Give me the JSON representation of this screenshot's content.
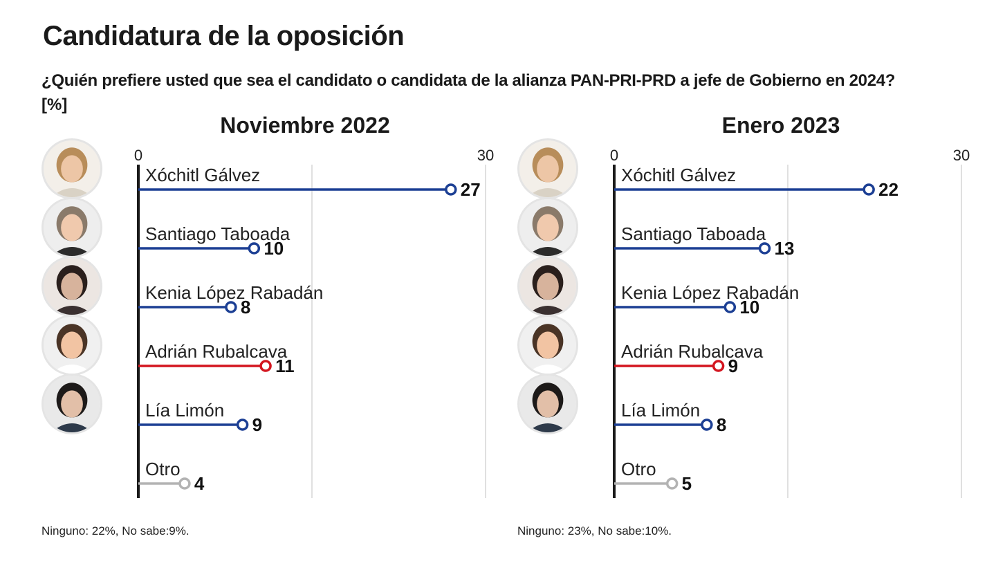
{
  "title": "Candidatura de la oposición",
  "subtitle": "¿Quién prefiere usted que sea el candidato o candidata de la alianza PAN-PRI-PRD a jefe de Gobierno en 2024?",
  "unit": "[%]",
  "colors": {
    "pan": "#1c3f94",
    "pri": "#d3151f",
    "other": "#b3b3b3",
    "axis": "#1a1a1a",
    "grid": "#cccccc"
  },
  "chart_data": [
    {
      "type": "bar",
      "title": "Noviembre  2022",
      "xlim": [
        0,
        30
      ],
      "ticks": [
        0,
        30
      ],
      "categories": [
        "Xóchitl Gálvez",
        "Santiago Taboada",
        "Kenia López Rabadán",
        "Adrián Rubalcava",
        "Lía Limón",
        "Otro"
      ],
      "values": [
        27,
        10,
        8,
        11,
        9,
        4
      ],
      "colors": [
        "#1c3f94",
        "#1c3f94",
        "#1c3f94",
        "#d3151f",
        "#1c3f94",
        "#b3b3b3"
      ],
      "footnote": "Ninguno: 22%, No sabe:9%."
    },
    {
      "type": "bar",
      "title": "Enero 2023",
      "xlim": [
        0,
        30
      ],
      "ticks": [
        0,
        30
      ],
      "categories": [
        "Xóchitl Gálvez",
        "Santiago Taboada",
        "Kenia López Rabadán",
        "Adrián Rubalcava",
        "Lía Limón",
        "Otro"
      ],
      "values": [
        22,
        13,
        10,
        9,
        8,
        5
      ],
      "colors": [
        "#1c3f94",
        "#1c3f94",
        "#1c3f94",
        "#d3151f",
        "#1c3f94",
        "#b3b3b3"
      ],
      "footnote": "Ninguno: 23%, No sabe:10%."
    }
  ]
}
